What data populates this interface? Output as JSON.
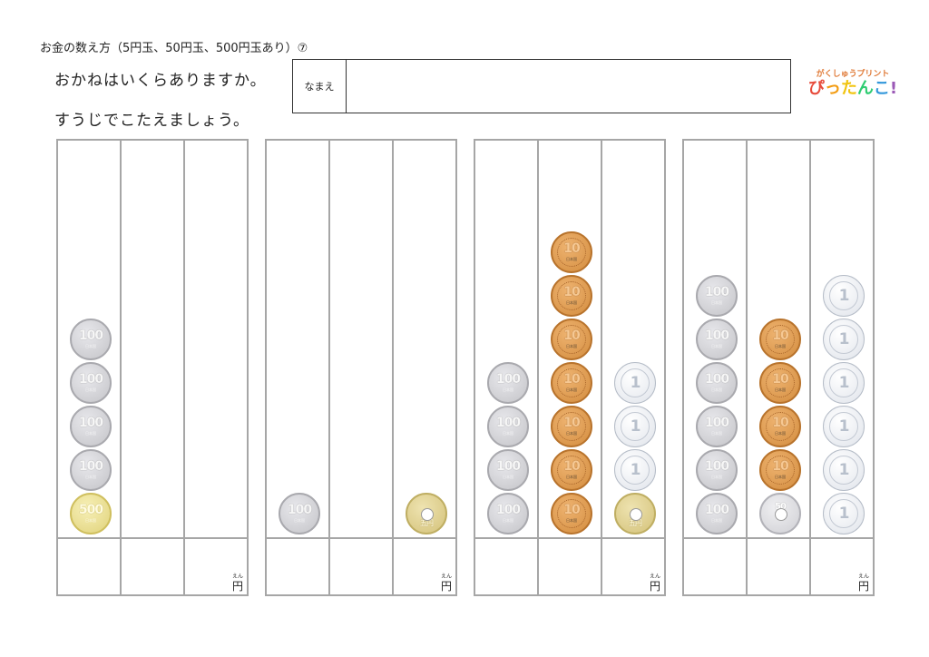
{
  "header": {
    "title": "お金の数え方（5円玉、50円玉、500円玉あり）⑦",
    "instruction_1": "おかねはいくらありますか。",
    "instruction_2": "すうじでこたえましょう。",
    "name_label": "なまえ"
  },
  "logo": {
    "sub": "がくしゅうプリント",
    "main": [
      "ぴ",
      "っ",
      "た",
      "ん",
      "こ",
      "!"
    ]
  },
  "answer_unit": {
    "ruby": "えん",
    "label": "円"
  },
  "problems": [
    {
      "columns": [
        [
          "500",
          "100",
          "100",
          "100",
          "100"
        ],
        [],
        []
      ]
    },
    {
      "columns": [
        [
          "100"
        ],
        [],
        [
          "5"
        ]
      ]
    },
    {
      "columns": [
        [
          "100",
          "100",
          "100",
          "100"
        ],
        [
          "10",
          "10",
          "10",
          "10",
          "10",
          "10",
          "10"
        ],
        [
          "5",
          "1",
          "1",
          "1"
        ]
      ]
    },
    {
      "columns": [
        [
          "100",
          "100",
          "100",
          "100",
          "100",
          "100"
        ],
        [
          "50",
          "10",
          "10",
          "10",
          "10"
        ],
        [
          "1",
          "1",
          "1",
          "1",
          "1",
          "1"
        ]
      ]
    }
  ],
  "coin_labels": {
    "500": "500",
    "100": "100",
    "50": "50",
    "10": "10",
    "5": "五円",
    "1": "1"
  },
  "coin_sub": "日本国"
}
